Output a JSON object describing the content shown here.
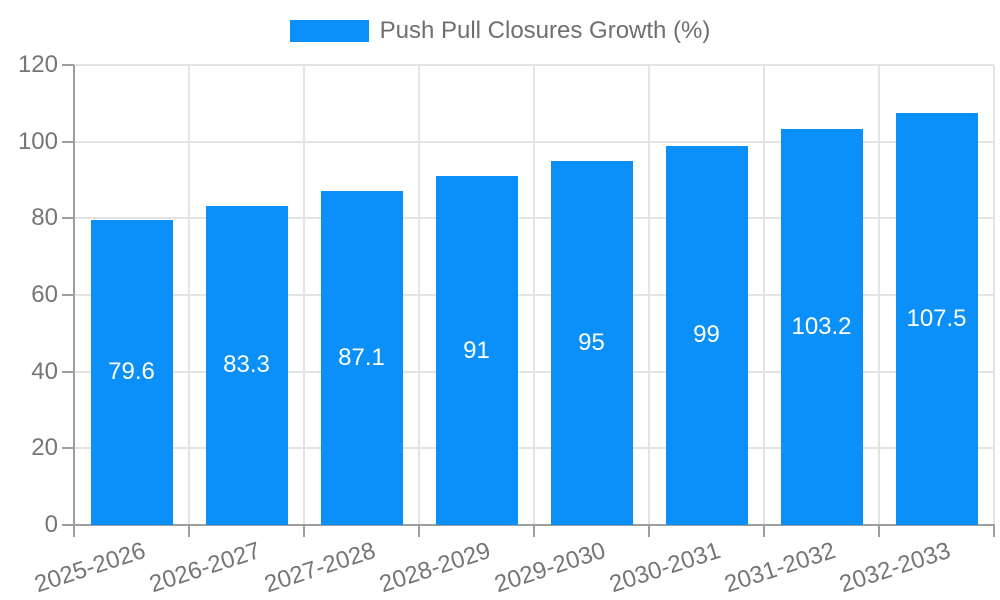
{
  "chart_data": {
    "type": "bar",
    "title": "Push Pull Closures Growth (%)",
    "categories": [
      "2025-2026",
      "2026-2027",
      "2027-2028",
      "2028-2029",
      "2029-2030",
      "2030-2031",
      "2031-2032",
      "2032-2033"
    ],
    "values": [
      79.6,
      83.3,
      87.1,
      91,
      95,
      99,
      103.2,
      107.5
    ],
    "value_labels": [
      "79.6",
      "83.3",
      "87.1",
      "91",
      "95",
      "99",
      "103.2",
      "107.5"
    ],
    "xlabel": "",
    "ylabel": "",
    "ylim": [
      0,
      120
    ],
    "yticks": [
      0,
      20,
      40,
      60,
      80,
      100,
      120
    ],
    "grid": true,
    "legend_position": "top",
    "colors": {
      "bar": "#0a90f8",
      "value_label": "#ffffff",
      "axis_text": "#757575",
      "legend_text": "#6f6f6f",
      "grid_line": "#e4e4e4",
      "axis_line": "#9e9e9e",
      "background": "#ffffff"
    }
  }
}
